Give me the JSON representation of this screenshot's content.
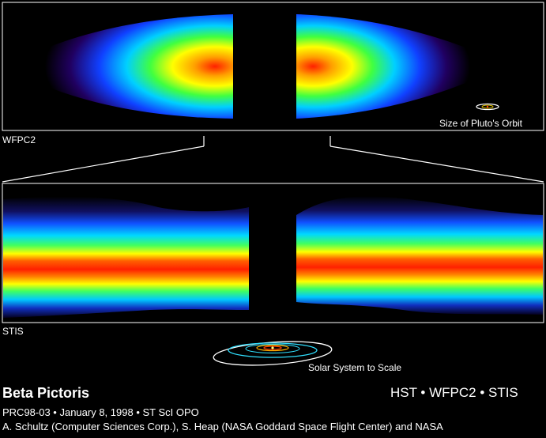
{
  "panels": {
    "top_label": "WFPC2",
    "pluto_label": "Size of Pluto's Orbit",
    "bottom_label": "STIS",
    "solar_label": "Solar System to Scale"
  },
  "caption": {
    "title": "Beta Pictoris",
    "instruments": "HST • WFPC2 • STIS",
    "release": "PRC98-03 • January 8, 1998 • ST ScI OPO",
    "credit": "A. Schultz (Computer Sciences Corp.), S. Heap (NASA Goddard Space Flight Center) and NASA"
  },
  "colors": {
    "background": "#000000",
    "frame": "#ffffff",
    "disk_core": "#ff2a00",
    "disk_mid": "#ffe000",
    "disk_outer": "#00d0ff",
    "disk_edge": "#1010a0"
  }
}
